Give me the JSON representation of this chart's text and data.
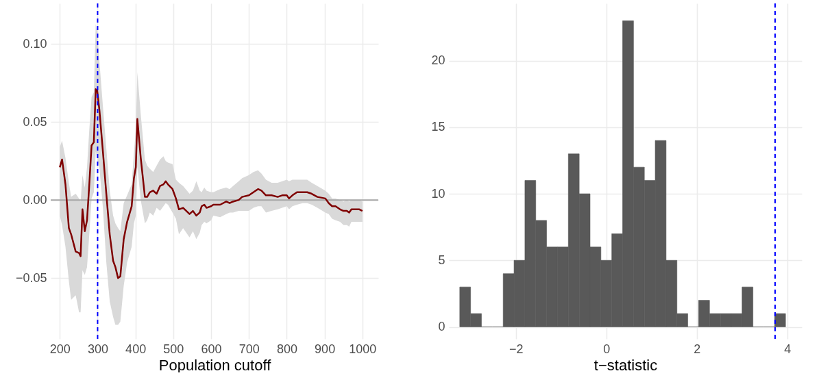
{
  "chart_data": [
    {
      "type": "line",
      "xlabel": "Population cutoff",
      "xlim": [
        176,
        1042
      ],
      "xticks": [
        200,
        300,
        400,
        500,
        600,
        700,
        800,
        900,
        1000
      ],
      "ylim": [
        -0.089,
        0.126
      ],
      "yticks": [
        {
          "value": -0.05,
          "label": "−0.05"
        },
        {
          "value": 0,
          "label": "0.00"
        },
        {
          "value": 0.05,
          "label": "0.05"
        },
        {
          "value": 0.1,
          "label": "0.10"
        }
      ],
      "grid": true,
      "x": [
        200,
        206,
        215,
        224,
        230,
        242,
        251,
        255,
        260,
        266,
        272,
        278,
        284,
        290,
        295,
        299,
        305,
        314,
        323,
        332,
        341,
        347,
        354,
        360,
        369,
        378,
        390,
        396,
        401,
        405,
        414,
        425,
        431,
        438,
        447,
        456,
        465,
        474,
        480,
        486,
        498,
        507,
        515,
        526,
        543,
        552,
        561,
        570,
        575,
        582,
        588,
        600,
        606,
        624,
        640,
        649,
        658,
        673,
        682,
        700,
        712,
        724,
        733,
        745,
        760,
        776,
        788,
        800,
        806,
        815,
        827,
        842,
        854,
        866,
        881,
        902,
        911,
        920,
        929,
        941,
        950,
        959,
        965,
        971,
        983,
        992,
        1000
      ],
      "series": [
        {
          "color": "#7f0000",
          "values": [
            0.021,
            0.026,
            0.01,
            -0.018,
            -0.022,
            -0.033,
            -0.034,
            -0.036,
            -0.006,
            -0.02,
            -0.013,
            0.01,
            0.035,
            0.037,
            0.071,
            0.07,
            0.057,
            0.031,
            0.004,
            -0.022,
            -0.039,
            -0.043,
            -0.05,
            -0.049,
            -0.025,
            -0.014,
            -0.004,
            0.014,
            0.021,
            0.052,
            0.027,
            0.002,
            0.002,
            0.005,
            0.006,
            0.004,
            0.009,
            0.01,
            0.012,
            0.01,
            0.007,
            0.001,
            -0.006,
            -0.005,
            -0.009,
            -0.007,
            -0.01,
            -0.008,
            -0.004,
            -0.003,
            -0.005,
            -0.004,
            -0.003,
            -0.003,
            -0.001,
            -0.002,
            -0.001,
            0.0,
            0.002,
            0.003,
            0.005,
            0.007,
            0.006,
            0.003,
            0.003,
            0.002,
            0.003,
            0.003,
            0.001,
            0.003,
            0.005,
            0.005,
            0.005,
            0.004,
            0.002,
            0.001,
            -0.002,
            -0.004,
            -0.004,
            -0.006,
            -0.007,
            -0.007,
            -0.008,
            -0.006,
            -0.006,
            -0.006,
            -0.007
          ],
          "upper": [
            0.034,
            0.038,
            0.027,
            0.011,
            0.002,
            0.004,
            0.001,
            -0.001,
            0.016,
            0.008,
            0.021,
            0.045,
            0.066,
            0.069,
            0.113,
            0.107,
            0.088,
            0.06,
            0.033,
            0.006,
            -0.01,
            -0.015,
            -0.018,
            -0.02,
            -0.002,
            0.003,
            0.01,
            0.03,
            0.045,
            0.082,
            0.055,
            0.026,
            0.022,
            0.02,
            0.018,
            0.022,
            0.026,
            0.028,
            0.025,
            0.024,
            0.023,
            0.013,
            0.011,
            0.009,
            0.004,
            0.006,
            0.012,
            0.006,
            0.005,
            0.008,
            0.006,
            0.005,
            0.005,
            0.007,
            0.008,
            0.007,
            0.009,
            0.012,
            0.014,
            0.016,
            0.018,
            0.019,
            0.017,
            0.013,
            0.011,
            0.011,
            0.012,
            0.013,
            0.012,
            0.013,
            0.013,
            0.013,
            0.013,
            0.011,
            0.009,
            0.006,
            0.004,
            0.001,
            0.001,
            0.0,
            -0.001,
            0.0,
            -0.001,
            0.0,
            0.0,
            0.0,
            -0.001
          ],
          "lower": [
            -0.01,
            -0.016,
            -0.03,
            -0.052,
            -0.064,
            -0.061,
            -0.072,
            -0.072,
            -0.045,
            -0.048,
            -0.043,
            -0.022,
            0.001,
            0.005,
            0.031,
            0.027,
            0.02,
            -0.005,
            -0.04,
            -0.065,
            -0.075,
            -0.08,
            -0.08,
            -0.078,
            -0.055,
            -0.04,
            -0.03,
            -0.015,
            -0.01,
            0.022,
            0.0,
            -0.015,
            -0.013,
            -0.008,
            -0.01,
            -0.005,
            -0.007,
            -0.004,
            -0.002,
            -0.003,
            -0.008,
            -0.012,
            -0.022,
            -0.018,
            -0.024,
            -0.02,
            -0.025,
            -0.021,
            -0.016,
            -0.014,
            -0.015,
            -0.013,
            -0.01,
            -0.011,
            -0.009,
            -0.008,
            -0.008,
            -0.007,
            -0.007,
            -0.007,
            -0.005,
            -0.004,
            -0.004,
            -0.008,
            -0.007,
            -0.006,
            -0.005,
            -0.004,
            -0.006,
            -0.004,
            -0.003,
            -0.002,
            -0.002,
            -0.003,
            -0.005,
            -0.008,
            -0.009,
            -0.012,
            -0.013,
            -0.014,
            -0.016,
            -0.016,
            -0.017,
            -0.014,
            -0.014,
            -0.014,
            -0.014
          ]
        }
      ],
      "ref_lines": [
        {
          "axis": "y",
          "value": 0,
          "color": "#a6a6a6",
          "line_style": "solid"
        },
        {
          "axis": "x",
          "value": 300,
          "color": "#0000ff",
          "line_style": "dashed"
        }
      ]
    },
    {
      "type": "histogram",
      "xlabel": "t−statistic",
      "xlim": [
        -3.48,
        4.32
      ],
      "xticks": [
        {
          "value": -2,
          "label": "−2"
        },
        0,
        2,
        4
      ],
      "ylim": [
        -0.9,
        24.3
      ],
      "yticks": [
        0,
        5,
        10,
        15,
        20
      ],
      "grid": true,
      "color": "#595959",
      "bins": [
        -3.24,
        -3.0,
        -2.76,
        -2.52,
        -2.28,
        -2.04,
        -1.8,
        -1.56,
        -1.32,
        -1.08,
        -0.84,
        -0.6,
        -0.36,
        -0.12,
        0.12,
        0.36,
        0.6,
        0.84,
        1.08,
        1.32,
        1.56,
        1.8,
        2.04,
        2.28,
        2.52,
        2.76,
        3.0,
        3.24,
        3.48,
        3.72,
        3.96
      ],
      "values": [
        3,
        1,
        0,
        0,
        4,
        5,
        11,
        8,
        6,
        6,
        13,
        10,
        6,
        5,
        7,
        23,
        12,
        11,
        14,
        5,
        1,
        0,
        2,
        1,
        1,
        1,
        3,
        0,
        0,
        1
      ],
      "ref_lines": [
        {
          "axis": "x",
          "value": 3.73,
          "color": "#0000ff",
          "line_style": "dashed"
        }
      ]
    }
  ]
}
